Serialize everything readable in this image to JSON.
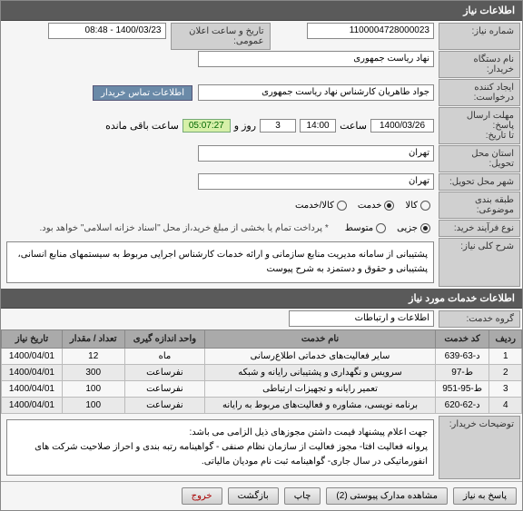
{
  "header": {
    "title": "اطلاعات نیاز"
  },
  "info": {
    "need_no_label": "شماره نیاز:",
    "need_no": "1100004728000023",
    "pub_date_label": "تاریخ و ساعت اعلان عمومی:",
    "pub_date": "1400/03/23 - 08:48",
    "buyer_org_label": "نام دستگاه خریدار:",
    "buyer_org": "نهاد ریاست جمهوری",
    "creator_label": "ایجاد کننده درخواست:",
    "creator": "جواد طاهریان کارشناس نهاد ریاست جمهوری",
    "contact_btn": "اطلاعات تماس خریدار",
    "deadline_label": "مهلت ارسال پاسخ:",
    "until_label": "تا تاریخ:",
    "date_val": "1400/03/26",
    "time_lbl": "ساعت",
    "time_val": "14:00",
    "days_val": "3",
    "days_lbl": "روز و",
    "countdown": "05:07:27",
    "remain_lbl": "ساعت باقی مانده",
    "province_label": "استان محل تحویل:",
    "province": "تهران",
    "city_label": "شهر محل تحویل:",
    "city": "تهران",
    "cat_label": "طبقه بندی موضوعی:",
    "cat_goods": "کالا",
    "cat_service": "خدمت",
    "cat_both": "کالا/خدمت",
    "buy_type_label": "نوع فرآیند خرید:",
    "buy_partial": "جزیی",
    "buy_medium": "متوسط",
    "pay_note": "* پرداخت تمام یا بخشی از مبلغ خرید،از محل \"اسناد خزانه اسلامی\" خواهد بود.",
    "desc_label": "شرح کلی نیاز:",
    "desc": "پشتیبانی از سامانه مدیریت منابع سازمانی  و ارائه خدمات کارشناس اجرایی مربوط به سیستمهای منابع انسانی، پشتیبانی و حقوق و دستمزد  به شرح پیوست"
  },
  "services": {
    "header": "اطلاعات خدمات مورد نیاز",
    "group_label": "گروه خدمت:",
    "group_value": "اطلاعات و ارتباطات",
    "cols": {
      "row": "ردیف",
      "code": "کد خدمت",
      "name": "نام خدمت",
      "unit": "واحد اندازه گیری",
      "qty": "تعداد / مقدار",
      "date": "تاریخ نیاز"
    },
    "rows": [
      {
        "n": "1",
        "code": "د-63-639",
        "name": "سایر فعالیت‌های خدماتی اطلاع‌رسانی",
        "unit": "ماه",
        "qty": "12",
        "date": "1400/04/01"
      },
      {
        "n": "2",
        "code": "ط-97",
        "name": "سرویس و نگهداری و پشتیبانی رایانه و شبکه",
        "unit": "نفرساعت",
        "qty": "300",
        "date": "1400/04/01"
      },
      {
        "n": "3",
        "code": "ط-95-951",
        "name": "تعمیر رایانه و تجهیزات ارتباطی",
        "unit": "نفرساعت",
        "qty": "100",
        "date": "1400/04/01"
      },
      {
        "n": "4",
        "code": "د-62-620",
        "name": "برنامه نویسی، مشاوره و فعالیت‌های مربوط به رایانه",
        "unit": "نفرساعت",
        "qty": "100",
        "date": "1400/04/01"
      }
    ],
    "notes_label": "توضیحات خریدار:",
    "notes": "جهت اعلام پیشنهاد قیمت داشتن مجوزهای ذیل الزامی می باشد:\nپروانه فعالیت افتا- مجوز فعالیت از سازمان نظام صنفی - گواهینامه رتبه بندی و احراز صلاحیت شرکت های انفورماتیکی در سال جاری- گواهینامه ثبت نام مودیان مالیاتی."
  },
  "buttons": {
    "reply": "پاسخ به نیاز",
    "attachments": "مشاهده مدارک پیوستی (2)",
    "print": "چاپ",
    "back": "بازگشت",
    "exit": "خروج"
  }
}
